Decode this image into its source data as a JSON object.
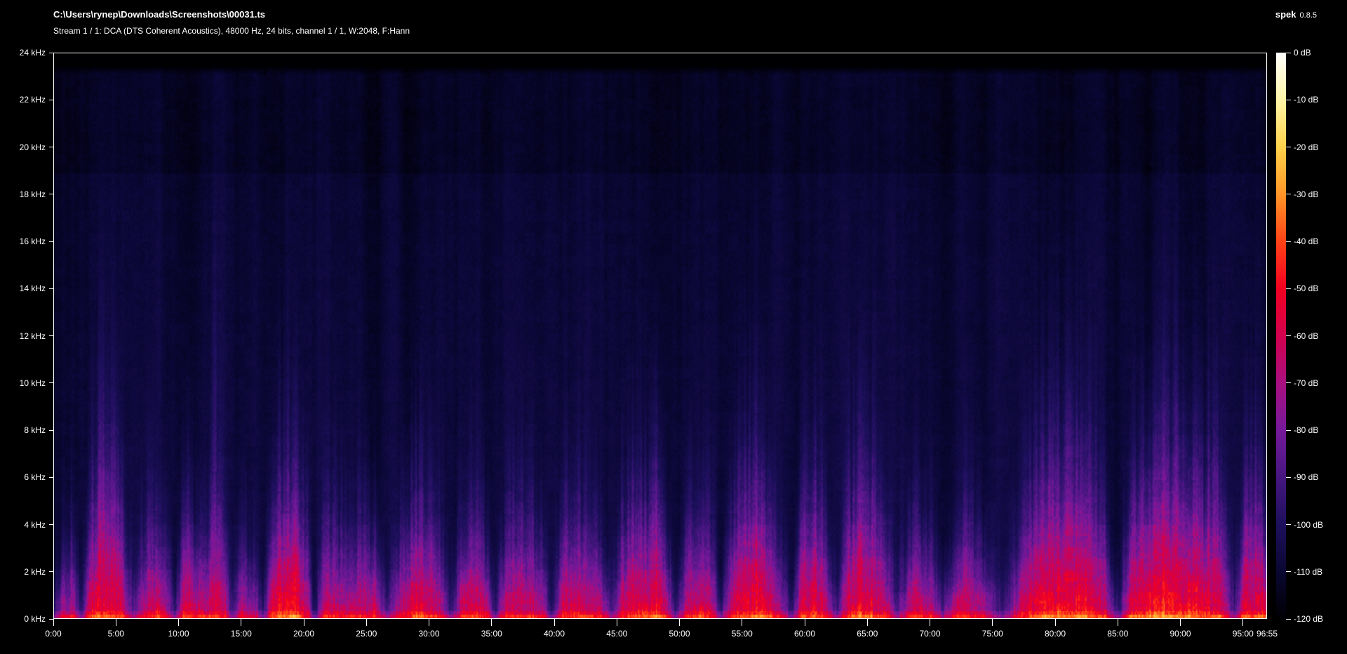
{
  "header": {
    "file_path": "C:\\Users\\rynep\\Downloads\\Screenshots\\00031.ts",
    "stream_info": "Stream 1 / 1: DCA (DTS Coherent Acoustics), 48000 Hz, 24 bits, channel 1 / 1, W:2048, F:Hann",
    "app_name": "spek",
    "app_version": "0.8.5"
  },
  "colors": {
    "background": "#000000",
    "text": "#ffffff",
    "plot_border": "#ffffff"
  },
  "chart_data": {
    "type": "heatmap",
    "subtype": "audio-spectrogram",
    "title": "C:\\Users\\rynep\\Downloads\\Screenshots\\00031.ts",
    "subtitle": "Stream 1 / 1: DCA (DTS Coherent Acoustics), 48000 Hz, 24 bits, channel 1 / 1, W:2048, F:Hann",
    "grid": false,
    "legend_position": "right",
    "x_axis": {
      "unit": "min:sec",
      "duration_minutes": 96.9167,
      "ticks": [
        "0:00",
        "5:00",
        "10:00",
        "15:00",
        "20:00",
        "25:00",
        "30:00",
        "35:00",
        "40:00",
        "45:00",
        "50:00",
        "55:00",
        "60:00",
        "65:00",
        "70:00",
        "75:00",
        "80:00",
        "85:00",
        "90:00",
        "95:00"
      ],
      "end_label": "96:55"
    },
    "y_axis": {
      "unit": "kHz",
      "min_khz": 0,
      "max_khz": 24,
      "content_cutoff_khz": 23.45,
      "ticks": [
        "24 kHz",
        "22 kHz",
        "20 kHz",
        "18 kHz",
        "16 kHz",
        "14 kHz",
        "12 kHz",
        "10 kHz",
        "8 kHz",
        "6 kHz",
        "4 kHz",
        "2 kHz",
        "0 kHz"
      ]
    },
    "colorbar": {
      "max_db": 0,
      "min_db": -120,
      "ticks": [
        "0 dB",
        "-10 dB",
        "-20 dB",
        "-30 dB",
        "-40 dB",
        "-50 dB",
        "-60 dB",
        "-70 dB",
        "-80 dB",
        "-90 dB",
        "-100 dB",
        "-110 dB",
        "-120 dB"
      ],
      "palette_stops": [
        [
          0,
          "#ffffff"
        ],
        [
          -10,
          "#fff6a8"
        ],
        [
          -20,
          "#ffd24a"
        ],
        [
          -30,
          "#ff9627"
        ],
        [
          -40,
          "#ff4317"
        ],
        [
          -50,
          "#f30020"
        ],
        [
          -60,
          "#d2004e"
        ],
        [
          -70,
          "#a90f7f"
        ],
        [
          -80,
          "#75199b"
        ],
        [
          -90,
          "#461680"
        ],
        [
          -100,
          "#1d105c"
        ],
        [
          -110,
          "#0a0732"
        ],
        [
          -120,
          "#000003"
        ]
      ]
    },
    "envelope_format": [
      "minute",
      "level_db_at_0khz",
      "energy_height_khz"
    ],
    "envelope": [
      [
        0.0,
        -92,
        1.0
      ],
      [
        0.6,
        -72,
        2.0
      ],
      [
        1.5,
        -62,
        2.8
      ],
      [
        2.2,
        -95,
        1.0
      ],
      [
        3.0,
        -52,
        4.5
      ],
      [
        4.2,
        -48,
        5.5
      ],
      [
        5.4,
        -56,
        3.6
      ],
      [
        6.3,
        -86,
        1.6
      ],
      [
        7.2,
        -62,
        2.8
      ],
      [
        8.2,
        -58,
        3.2
      ],
      [
        9.1,
        -70,
        2.2
      ],
      [
        9.7,
        -92,
        1.2
      ],
      [
        10.4,
        -55,
        3.8
      ],
      [
        11.3,
        -61,
        2.9
      ],
      [
        12.1,
        -64,
        2.7
      ],
      [
        12.8,
        -52,
        4.6
      ],
      [
        13.6,
        -60,
        3.0
      ],
      [
        14.2,
        -90,
        1.3
      ],
      [
        15.1,
        -67,
        2.4
      ],
      [
        16.0,
        -71,
        2.2
      ],
      [
        16.7,
        -94,
        1.0
      ],
      [
        17.4,
        -58,
        3.4
      ],
      [
        18.3,
        -50,
        4.6
      ],
      [
        19.4,
        -49,
        4.8
      ],
      [
        20.2,
        -60,
        3.0
      ],
      [
        20.8,
        -97,
        0.8
      ],
      [
        21.6,
        -62,
        2.9
      ],
      [
        22.6,
        -58,
        3.3
      ],
      [
        23.6,
        -64,
        2.6
      ],
      [
        24.6,
        -60,
        3.0
      ],
      [
        25.6,
        -62,
        2.8
      ],
      [
        26.6,
        -88,
        1.2
      ],
      [
        27.3,
        -70,
        2.1
      ],
      [
        28.1,
        -60,
        3.2
      ],
      [
        29.1,
        -53,
        4.3
      ],
      [
        30.1,
        -56,
        3.7
      ],
      [
        31.0,
        -66,
        2.5
      ],
      [
        31.7,
        -92,
        1.1
      ],
      [
        32.6,
        -61,
        2.9
      ],
      [
        33.6,
        -58,
        3.3
      ],
      [
        34.6,
        -65,
        2.5
      ],
      [
        35.3,
        -90,
        1.1
      ],
      [
        36.1,
        -61,
        2.9
      ],
      [
        37.1,
        -56,
        3.7
      ],
      [
        38.1,
        -59,
        3.2
      ],
      [
        39.1,
        -63,
        2.7
      ],
      [
        39.8,
        -93,
        1.0
      ],
      [
        40.6,
        -60,
        3.0
      ],
      [
        41.6,
        -56,
        3.6
      ],
      [
        42.6,
        -59,
        3.2
      ],
      [
        43.6,
        -63,
        2.7
      ],
      [
        44.6,
        -88,
        1.3
      ],
      [
        45.4,
        -58,
        3.3
      ],
      [
        46.4,
        -54,
        4.0
      ],
      [
        47.4,
        -56,
        3.7
      ],
      [
        48.1,
        -52,
        4.5
      ],
      [
        49.0,
        -61,
        2.9
      ],
      [
        49.7,
        -92,
        1.1
      ],
      [
        50.6,
        -60,
        3.1
      ],
      [
        51.6,
        -56,
        3.6
      ],
      [
        52.6,
        -61,
        2.9
      ],
      [
        53.3,
        -90,
        1.1
      ],
      [
        54.1,
        -58,
        3.3
      ],
      [
        55.1,
        -52,
        4.4
      ],
      [
        56.3,
        -50,
        4.7
      ],
      [
        57.3,
        -58,
        3.3
      ],
      [
        58.1,
        -66,
        2.4
      ],
      [
        58.9,
        -96,
        0.8
      ],
      [
        59.9,
        -55,
        3.9
      ],
      [
        60.7,
        -52,
        4.4
      ],
      [
        61.7,
        -61,
        2.9
      ],
      [
        62.6,
        -90,
        1.1
      ],
      [
        63.4,
        -58,
        3.3
      ],
      [
        64.4,
        -50,
        4.7
      ],
      [
        65.4,
        -52,
        4.4
      ],
      [
        66.4,
        -58,
        3.3
      ],
      [
        67.4,
        -85,
        1.5
      ],
      [
        68.2,
        -65,
        2.5
      ],
      [
        69.2,
        -60,
        3.0
      ],
      [
        70.2,
        -63,
        2.7
      ],
      [
        71.1,
        -88,
        1.3
      ],
      [
        72.1,
        -62,
        2.8
      ],
      [
        73.1,
        -58,
        3.2
      ],
      [
        74.1,
        -64,
        2.6
      ],
      [
        75.1,
        -80,
        1.8
      ],
      [
        75.9,
        -93,
        1.0
      ],
      [
        76.9,
        -65,
        2.5
      ],
      [
        77.9,
        -55,
        3.9
      ],
      [
        78.9,
        -50,
        4.7
      ],
      [
        80.1,
        -47,
        5.3
      ],
      [
        81.6,
        -48,
        5.2
      ],
      [
        83.1,
        -52,
        4.4
      ],
      [
        84.1,
        -61,
        2.9
      ],
      [
        85.1,
        -90,
        1.1
      ],
      [
        86.1,
        -55,
        3.9
      ],
      [
        87.1,
        -48,
        5.2
      ],
      [
        88.6,
        -47,
        5.5
      ],
      [
        90.1,
        -48,
        5.2
      ],
      [
        91.6,
        -50,
        4.8
      ],
      [
        93.1,
        -52,
        4.5
      ],
      [
        94.4,
        -88,
        1.3
      ],
      [
        95.1,
        -55,
        3.9
      ],
      [
        95.9,
        -50,
        4.7
      ],
      [
        96.5,
        -54,
        4.1
      ],
      [
        96.92,
        -58,
        3.4
      ]
    ],
    "spikes_format": [
      "minute",
      "top_khz",
      "peak_db"
    ],
    "spikes": [
      [
        3.95,
        13,
        -64
      ],
      [
        12.85,
        17.5,
        -56
      ],
      [
        19.0,
        9,
        -64
      ],
      [
        29.4,
        9,
        -66
      ],
      [
        48.1,
        12.5,
        -58
      ],
      [
        56.5,
        9,
        -66
      ],
      [
        64.8,
        9,
        -66
      ],
      [
        80.5,
        11,
        -64
      ],
      [
        88.2,
        12,
        -64
      ],
      [
        91.2,
        11,
        -66
      ]
    ]
  }
}
